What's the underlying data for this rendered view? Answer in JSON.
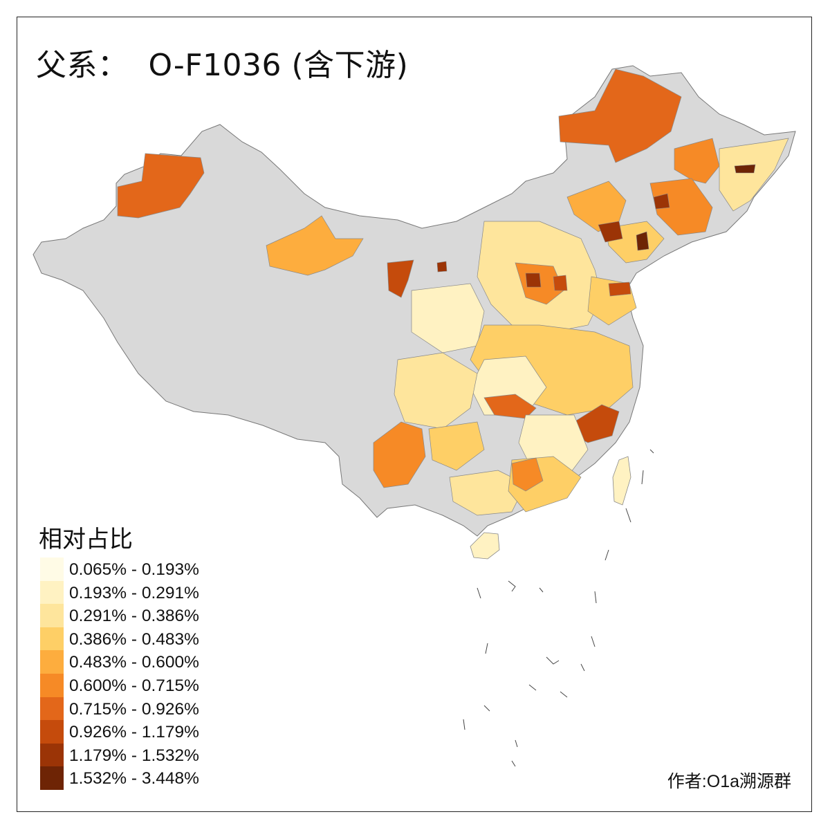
{
  "title": "父系：  O-F1036 (含下游)",
  "legend": {
    "title": "相对占比",
    "items": [
      {
        "label": "0.065% - 0.193%",
        "color": "#fffbe6"
      },
      {
        "label": "0.193% - 0.291%",
        "color": "#fff2c2"
      },
      {
        "label": "0.291% - 0.386%",
        "color": "#fee59c"
      },
      {
        "label": "0.386% - 0.483%",
        "color": "#fecf66"
      },
      {
        "label": "0.483% - 0.600%",
        "color": "#fdad3e"
      },
      {
        "label": "0.600% - 0.715%",
        "color": "#f68a26"
      },
      {
        "label": "0.715% - 0.926%",
        "color": "#e3671a"
      },
      {
        "label": "0.926% - 1.179%",
        "color": "#c54b0c"
      },
      {
        "label": "1.179% - 1.532%",
        "color": "#9b3406"
      },
      {
        "label": "1.532% - 3.448%",
        "color": "#6e2405"
      }
    ]
  },
  "map": {
    "no_data_color": "#d9d9d9",
    "border_color": "#888888"
  },
  "credit": "作者:O1a溯源群"
}
